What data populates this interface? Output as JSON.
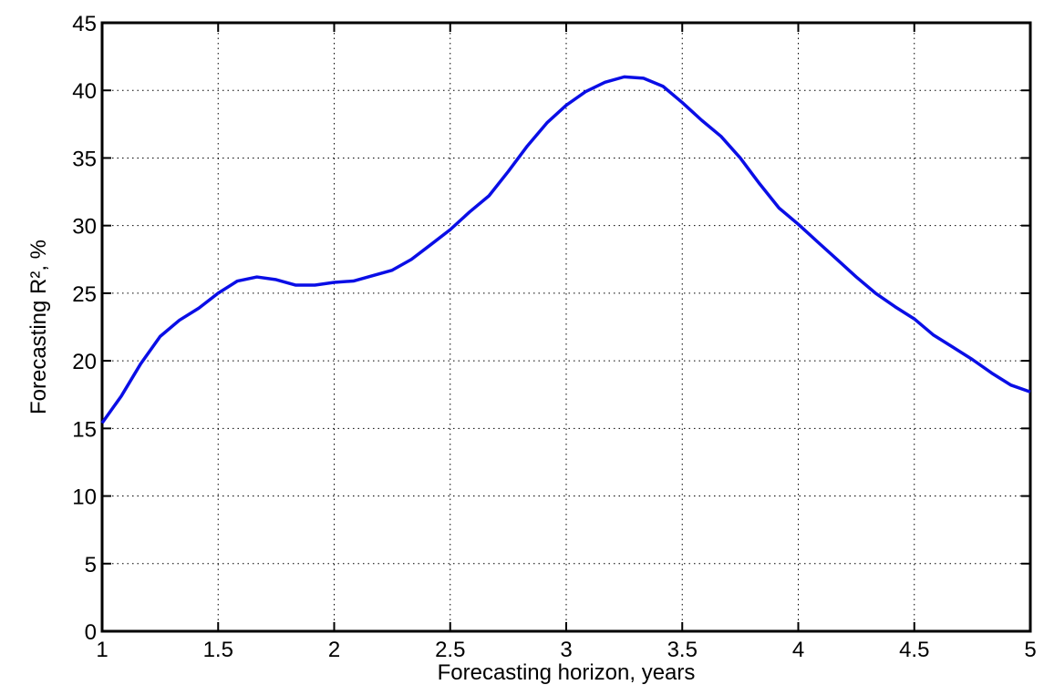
{
  "chart_data": {
    "type": "line",
    "xlabel": "Forecasting horizon, years",
    "ylabel": "Forecasting R², %",
    "x": [
      1.0,
      1.083,
      1.167,
      1.25,
      1.333,
      1.417,
      1.5,
      1.583,
      1.667,
      1.75,
      1.833,
      1.917,
      2.0,
      2.083,
      2.167,
      2.25,
      2.333,
      2.417,
      2.5,
      2.583,
      2.667,
      2.75,
      2.833,
      2.917,
      3.0,
      3.083,
      3.167,
      3.25,
      3.333,
      3.417,
      3.5,
      3.583,
      3.667,
      3.75,
      3.833,
      3.917,
      4.0,
      4.083,
      4.167,
      4.25,
      4.333,
      4.417,
      4.5,
      4.583,
      4.667,
      4.75,
      4.833,
      4.917,
      5.0
    ],
    "series": [
      {
        "color": "#0a0ee6",
        "values": [
          15.4,
          17.4,
          19.8,
          21.8,
          23.0,
          23.9,
          25.0,
          25.9,
          26.2,
          26.0,
          25.6,
          25.6,
          25.8,
          25.9,
          26.3,
          26.7,
          27.5,
          28.6,
          29.7,
          31.0,
          32.2,
          34.0,
          35.9,
          37.6,
          38.9,
          39.9,
          40.6,
          41.0,
          40.9,
          40.3,
          39.1,
          37.8,
          36.6,
          35.0,
          33.1,
          31.3,
          30.1,
          28.8,
          27.5,
          26.2,
          25.0,
          24.0,
          23.1,
          21.9,
          21.0,
          20.1,
          19.1,
          18.2,
          17.7
        ]
      }
    ],
    "xlim": [
      1,
      5
    ],
    "xticks": [
      1,
      1.5,
      2,
      2.5,
      3,
      3.5,
      4,
      4.5,
      5
    ],
    "ylim": [
      0,
      45
    ],
    "yticks": [
      0,
      5,
      10,
      15,
      20,
      25,
      30,
      35,
      40,
      45
    ],
    "grid": true
  }
}
